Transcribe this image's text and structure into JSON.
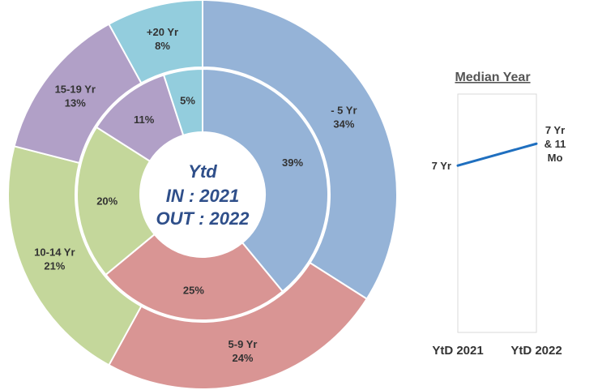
{
  "chart_data": [
    {
      "type": "pie",
      "center_text": [
        "Ytd",
        "IN : 2021",
        "OUT : 2022"
      ],
      "categories": [
        "- 5 Yr",
        "5-9 Yr",
        "10-14 Yr",
        "15-19 Yr",
        "+20 Yr"
      ],
      "colors": [
        "#95b3d7",
        "#d99594",
        "#c4d79b",
        "#b1a0c7",
        "#93cddd"
      ],
      "series": [
        {
          "name": "OUT : 2022",
          "ring": "outer",
          "values": [
            34,
            24,
            21,
            13,
            8
          ],
          "labels": [
            "34%",
            "24%",
            "21%",
            "13%",
            "8%"
          ]
        },
        {
          "name": "IN : 2021",
          "ring": "inner",
          "values": [
            39,
            25,
            20,
            11,
            5
          ],
          "labels": [
            "39%",
            "25%",
            "20%",
            "11%",
            "5%"
          ]
        }
      ]
    },
    {
      "type": "line",
      "title": "Median Year",
      "categories": [
        "YtD 2021",
        "YtD 2022"
      ],
      "values": [
        7,
        7.9167
      ],
      "value_labels": [
        [
          "7 Yr"
        ],
        [
          "7 Yr",
          "& 11",
          "Mo"
        ]
      ],
      "line_color": "#1f6fbf",
      "ylim": [
        0,
        10
      ]
    }
  ]
}
